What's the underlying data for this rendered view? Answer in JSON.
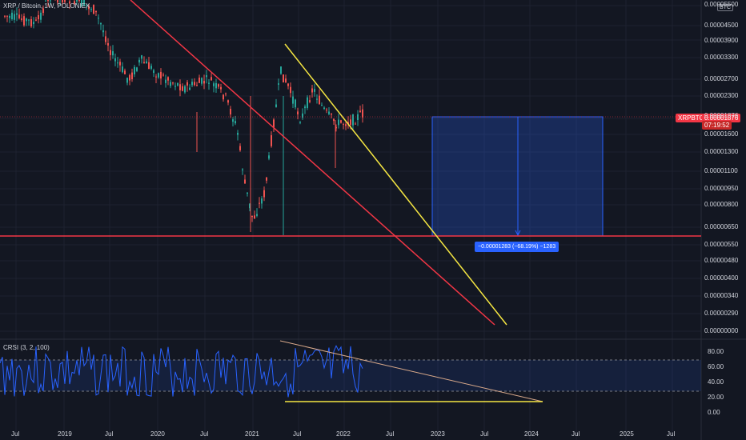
{
  "title": "XRP / Bitcoin, 1W, POLONIEX",
  "currency_tag": "BTC",
  "symbol_tag": "XRPBTC",
  "current_price": "0.00001876",
  "countdown": "07:19:52",
  "measure_label": "−0.00001283 (−68.19%) −1283",
  "indicator_label": "CRSI (3, 2, 100)",
  "colors": {
    "background": "#131722",
    "up": "#26a69a",
    "down": "#ef5350",
    "red_line": "#f23645",
    "yellow_line": "#f5e642",
    "rsi_line": "#2962ff"
  },
  "price_ticks": [
    "0.00000000",
    "0.00000290",
    "0.00000340",
    "0.00000400",
    "0.00000480",
    "0.00000550",
    "0.00000650",
    "0.00000800",
    "0.00000950",
    "0.00001100",
    "0.00001300",
    "0.00001600",
    "0.00001876",
    "0.00002300",
    "0.00002700",
    "0.00003300",
    "0.00003900",
    "0.00004500",
    "0.00005500"
  ],
  "rsi_ticks": [
    "80.00",
    "60.00",
    "40.00",
    "20.00",
    "0.00"
  ],
  "time_ticks": [
    "Jul",
    "2019",
    "Jul",
    "2020",
    "Jul",
    "2021",
    "Jul",
    "2022",
    "Jul",
    "2023",
    "Jul",
    "2024",
    "Jul",
    "2025",
    "Jul"
  ]
}
